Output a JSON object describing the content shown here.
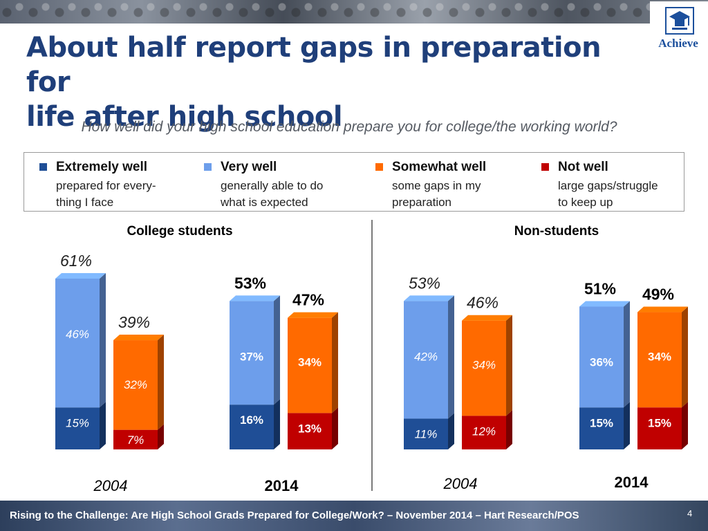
{
  "title_line1": "About half report gaps in preparation for",
  "title_line2": "life after high school",
  "question": "How well did your high school education prepare you for college/the working world?",
  "logo_text": "Achieve",
  "legend": [
    {
      "label": "Extremely well",
      "sub1": "prepared for every-",
      "sub2": "thing I face",
      "color": "#1f4e96"
    },
    {
      "label": "Very well",
      "sub1": "generally able to do",
      "sub2": "what is expected",
      "color": "#6d9eeb"
    },
    {
      "label": "Somewhat well",
      "sub1": "some gaps in my",
      "sub2": "preparation",
      "color": "#ff6a00"
    },
    {
      "label": "Not well",
      "sub1": "large gaps/struggle",
      "sub2": "to keep up",
      "color": "#c00000"
    }
  ],
  "groups": [
    "College students",
    "Non-students"
  ],
  "footer": "Rising to the Challenge:  Are High School Grads Prepared for College/Work? – November 2014 – Hart Research/POS",
  "page_number": "4",
  "chart_data": {
    "type": "bar",
    "title": "",
    "stacked": true,
    "ylim": [
      0,
      100
    ],
    "colors": {
      "extremely_well": "#1f4e96",
      "very_well": "#6d9eeb",
      "somewhat_well": "#ff6a00",
      "not_well": "#c00000"
    },
    "panels": [
      {
        "group": "College students",
        "years": [
          {
            "year": "2004",
            "well_bar": {
              "total": "61%",
              "segments": [
                {
                  "key": "extremely_well",
                  "value": 15,
                  "label": "15%"
                },
                {
                  "key": "very_well",
                  "value": 46,
                  "label": "46%"
                }
              ]
            },
            "gaps_bar": {
              "total": "39%",
              "segments": [
                {
                  "key": "not_well",
                  "value": 7,
                  "label": "7%"
                },
                {
                  "key": "somewhat_well",
                  "value": 32,
                  "label": "32%"
                }
              ]
            }
          },
          {
            "year": "2014",
            "well_bar": {
              "total": "53%",
              "segments": [
                {
                  "key": "extremely_well",
                  "value": 16,
                  "label": "16%"
                },
                {
                  "key": "very_well",
                  "value": 37,
                  "label": "37%"
                }
              ]
            },
            "gaps_bar": {
              "total": "47%",
              "segments": [
                {
                  "key": "not_well",
                  "value": 13,
                  "label": "13%"
                },
                {
                  "key": "somewhat_well",
                  "value": 34,
                  "label": "34%"
                }
              ]
            }
          }
        ]
      },
      {
        "group": "Non-students",
        "years": [
          {
            "year": "2004",
            "well_bar": {
              "total": "53%",
              "segments": [
                {
                  "key": "extremely_well",
                  "value": 11,
                  "label": "11%"
                },
                {
                  "key": "very_well",
                  "value": 42,
                  "label": "42%"
                }
              ]
            },
            "gaps_bar": {
              "total": "46%",
              "segments": [
                {
                  "key": "not_well",
                  "value": 12,
                  "label": "12%"
                },
                {
                  "key": "somewhat_well",
                  "value": 34,
                  "label": "34%"
                }
              ]
            }
          },
          {
            "year": "2014",
            "well_bar": {
              "total": "51%",
              "segments": [
                {
                  "key": "extremely_well",
                  "value": 15,
                  "label": "15%"
                },
                {
                  "key": "very_well",
                  "value": 36,
                  "label": "36%"
                }
              ]
            },
            "gaps_bar": {
              "total": "49%",
              "segments": [
                {
                  "key": "not_well",
                  "value": 15,
                  "label": "15%"
                },
                {
                  "key": "somewhat_well",
                  "value": 34,
                  "label": "34%"
                }
              ]
            }
          }
        ]
      }
    ]
  }
}
